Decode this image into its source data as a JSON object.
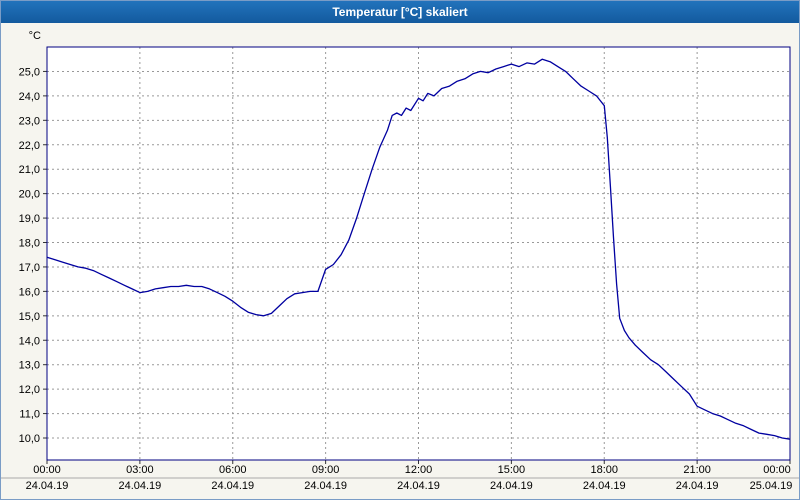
{
  "window": {
    "title": "Temperatur [°C] skaliert"
  },
  "chart_data": {
    "type": "line",
    "title": "Temperatur [°C] skaliert",
    "xlabel": "",
    "ylabel": "°C",
    "grid": "dashed",
    "grid_color": "#999999",
    "frame_color": "#000080",
    "line_color": "#0000a0",
    "ylim": [
      9.1,
      26.0
    ],
    "xlim_hours": [
      0,
      24
    ],
    "legend": "none",
    "y_ticks": [
      {
        "value": 10,
        "label": "10,0"
      },
      {
        "value": 11,
        "label": "11,0"
      },
      {
        "value": 12,
        "label": "12,0"
      },
      {
        "value": 13,
        "label": "13,0"
      },
      {
        "value": 14,
        "label": "14,0"
      },
      {
        "value": 15,
        "label": "15,0"
      },
      {
        "value": 16,
        "label": "16,0"
      },
      {
        "value": 17,
        "label": "17,0"
      },
      {
        "value": 18,
        "label": "18,0"
      },
      {
        "value": 19,
        "label": "19,0"
      },
      {
        "value": 20,
        "label": "20,0"
      },
      {
        "value": 21,
        "label": "21,0"
      },
      {
        "value": 22,
        "label": "22,0"
      },
      {
        "value": 23,
        "label": "23,0"
      },
      {
        "value": 24,
        "label": "24,0"
      },
      {
        "value": 25,
        "label": "25,0"
      }
    ],
    "x_ticks": [
      {
        "hour": 0,
        "time": "00:00",
        "date": "24.04.19"
      },
      {
        "hour": 3,
        "time": "03:00",
        "date": "24.04.19"
      },
      {
        "hour": 6,
        "time": "06:00",
        "date": "24.04.19"
      },
      {
        "hour": 9,
        "time": "09:00",
        "date": "24.04.19"
      },
      {
        "hour": 12,
        "time": "12:00",
        "date": "24.04.19"
      },
      {
        "hour": 15,
        "time": "15:00",
        "date": "24.04.19"
      },
      {
        "hour": 18,
        "time": "18:00",
        "date": "24.04.19"
      },
      {
        "hour": 21,
        "time": "21:00",
        "date": "24.04.19"
      },
      {
        "hour": 24,
        "time": "00:00",
        "date": "25.04.19"
      }
    ],
    "series": [
      {
        "name": "Temperatur",
        "points": [
          [
            0,
            17.4
          ],
          [
            0.25,
            17.3
          ],
          [
            0.5,
            17.2
          ],
          [
            0.75,
            17.1
          ],
          [
            1,
            17.0
          ],
          [
            1.25,
            16.95
          ],
          [
            1.5,
            16.85
          ],
          [
            1.75,
            16.7
          ],
          [
            2,
            16.55
          ],
          [
            2.25,
            16.4
          ],
          [
            2.5,
            16.25
          ],
          [
            2.75,
            16.1
          ],
          [
            3,
            15.95
          ],
          [
            3.25,
            16.0
          ],
          [
            3.5,
            16.1
          ],
          [
            3.75,
            16.15
          ],
          [
            4,
            16.2
          ],
          [
            4.25,
            16.2
          ],
          [
            4.5,
            16.25
          ],
          [
            4.75,
            16.2
          ],
          [
            5,
            16.2
          ],
          [
            5.25,
            16.1
          ],
          [
            5.5,
            15.95
          ],
          [
            5.75,
            15.8
          ],
          [
            6,
            15.6
          ],
          [
            6.25,
            15.35
          ],
          [
            6.5,
            15.15
          ],
          [
            6.75,
            15.05
          ],
          [
            7,
            15.0
          ],
          [
            7.25,
            15.1
          ],
          [
            7.5,
            15.4
          ],
          [
            7.75,
            15.7
          ],
          [
            8,
            15.9
          ],
          [
            8.25,
            15.95
          ],
          [
            8.5,
            16.0
          ],
          [
            8.75,
            16.0
          ],
          [
            9,
            16.9
          ],
          [
            9.25,
            17.1
          ],
          [
            9.5,
            17.5
          ],
          [
            9.75,
            18.1
          ],
          [
            10,
            19.0
          ],
          [
            10.25,
            20.0
          ],
          [
            10.5,
            21.0
          ],
          [
            10.75,
            21.9
          ],
          [
            11,
            22.6
          ],
          [
            11.15,
            23.2
          ],
          [
            11.3,
            23.3
          ],
          [
            11.45,
            23.2
          ],
          [
            11.6,
            23.5
          ],
          [
            11.75,
            23.4
          ],
          [
            12,
            23.9
          ],
          [
            12.15,
            23.8
          ],
          [
            12.3,
            24.1
          ],
          [
            12.5,
            24.0
          ],
          [
            12.75,
            24.3
          ],
          [
            13,
            24.4
          ],
          [
            13.25,
            24.6
          ],
          [
            13.5,
            24.7
          ],
          [
            13.75,
            24.9
          ],
          [
            14,
            25.0
          ],
          [
            14.25,
            24.95
          ],
          [
            14.5,
            25.1
          ],
          [
            14.75,
            25.2
          ],
          [
            15,
            25.3
          ],
          [
            15.25,
            25.2
          ],
          [
            15.5,
            25.35
          ],
          [
            15.75,
            25.3
          ],
          [
            16,
            25.5
          ],
          [
            16.25,
            25.4
          ],
          [
            16.5,
            25.2
          ],
          [
            16.75,
            25.0
          ],
          [
            17,
            24.7
          ],
          [
            17.25,
            24.4
          ],
          [
            17.5,
            24.2
          ],
          [
            17.75,
            24.0
          ],
          [
            18,
            23.6
          ],
          [
            18.1,
            22.3
          ],
          [
            18.2,
            20.3
          ],
          [
            18.3,
            18.2
          ],
          [
            18.4,
            16.3
          ],
          [
            18.5,
            14.9
          ],
          [
            18.65,
            14.4
          ],
          [
            18.8,
            14.1
          ],
          [
            19,
            13.8
          ],
          [
            19.25,
            13.5
          ],
          [
            19.5,
            13.2
          ],
          [
            19.75,
            13.0
          ],
          [
            20,
            12.7
          ],
          [
            20.25,
            12.4
          ],
          [
            20.5,
            12.1
          ],
          [
            20.75,
            11.8
          ],
          [
            21,
            11.3
          ],
          [
            21.25,
            11.15
          ],
          [
            21.5,
            11.0
          ],
          [
            21.75,
            10.9
          ],
          [
            22,
            10.75
          ],
          [
            22.25,
            10.6
          ],
          [
            22.5,
            10.5
          ],
          [
            22.75,
            10.35
          ],
          [
            23,
            10.2
          ],
          [
            23.25,
            10.15
          ],
          [
            23.5,
            10.1
          ],
          [
            23.75,
            10.0
          ],
          [
            24,
            9.95
          ]
        ]
      }
    ]
  }
}
